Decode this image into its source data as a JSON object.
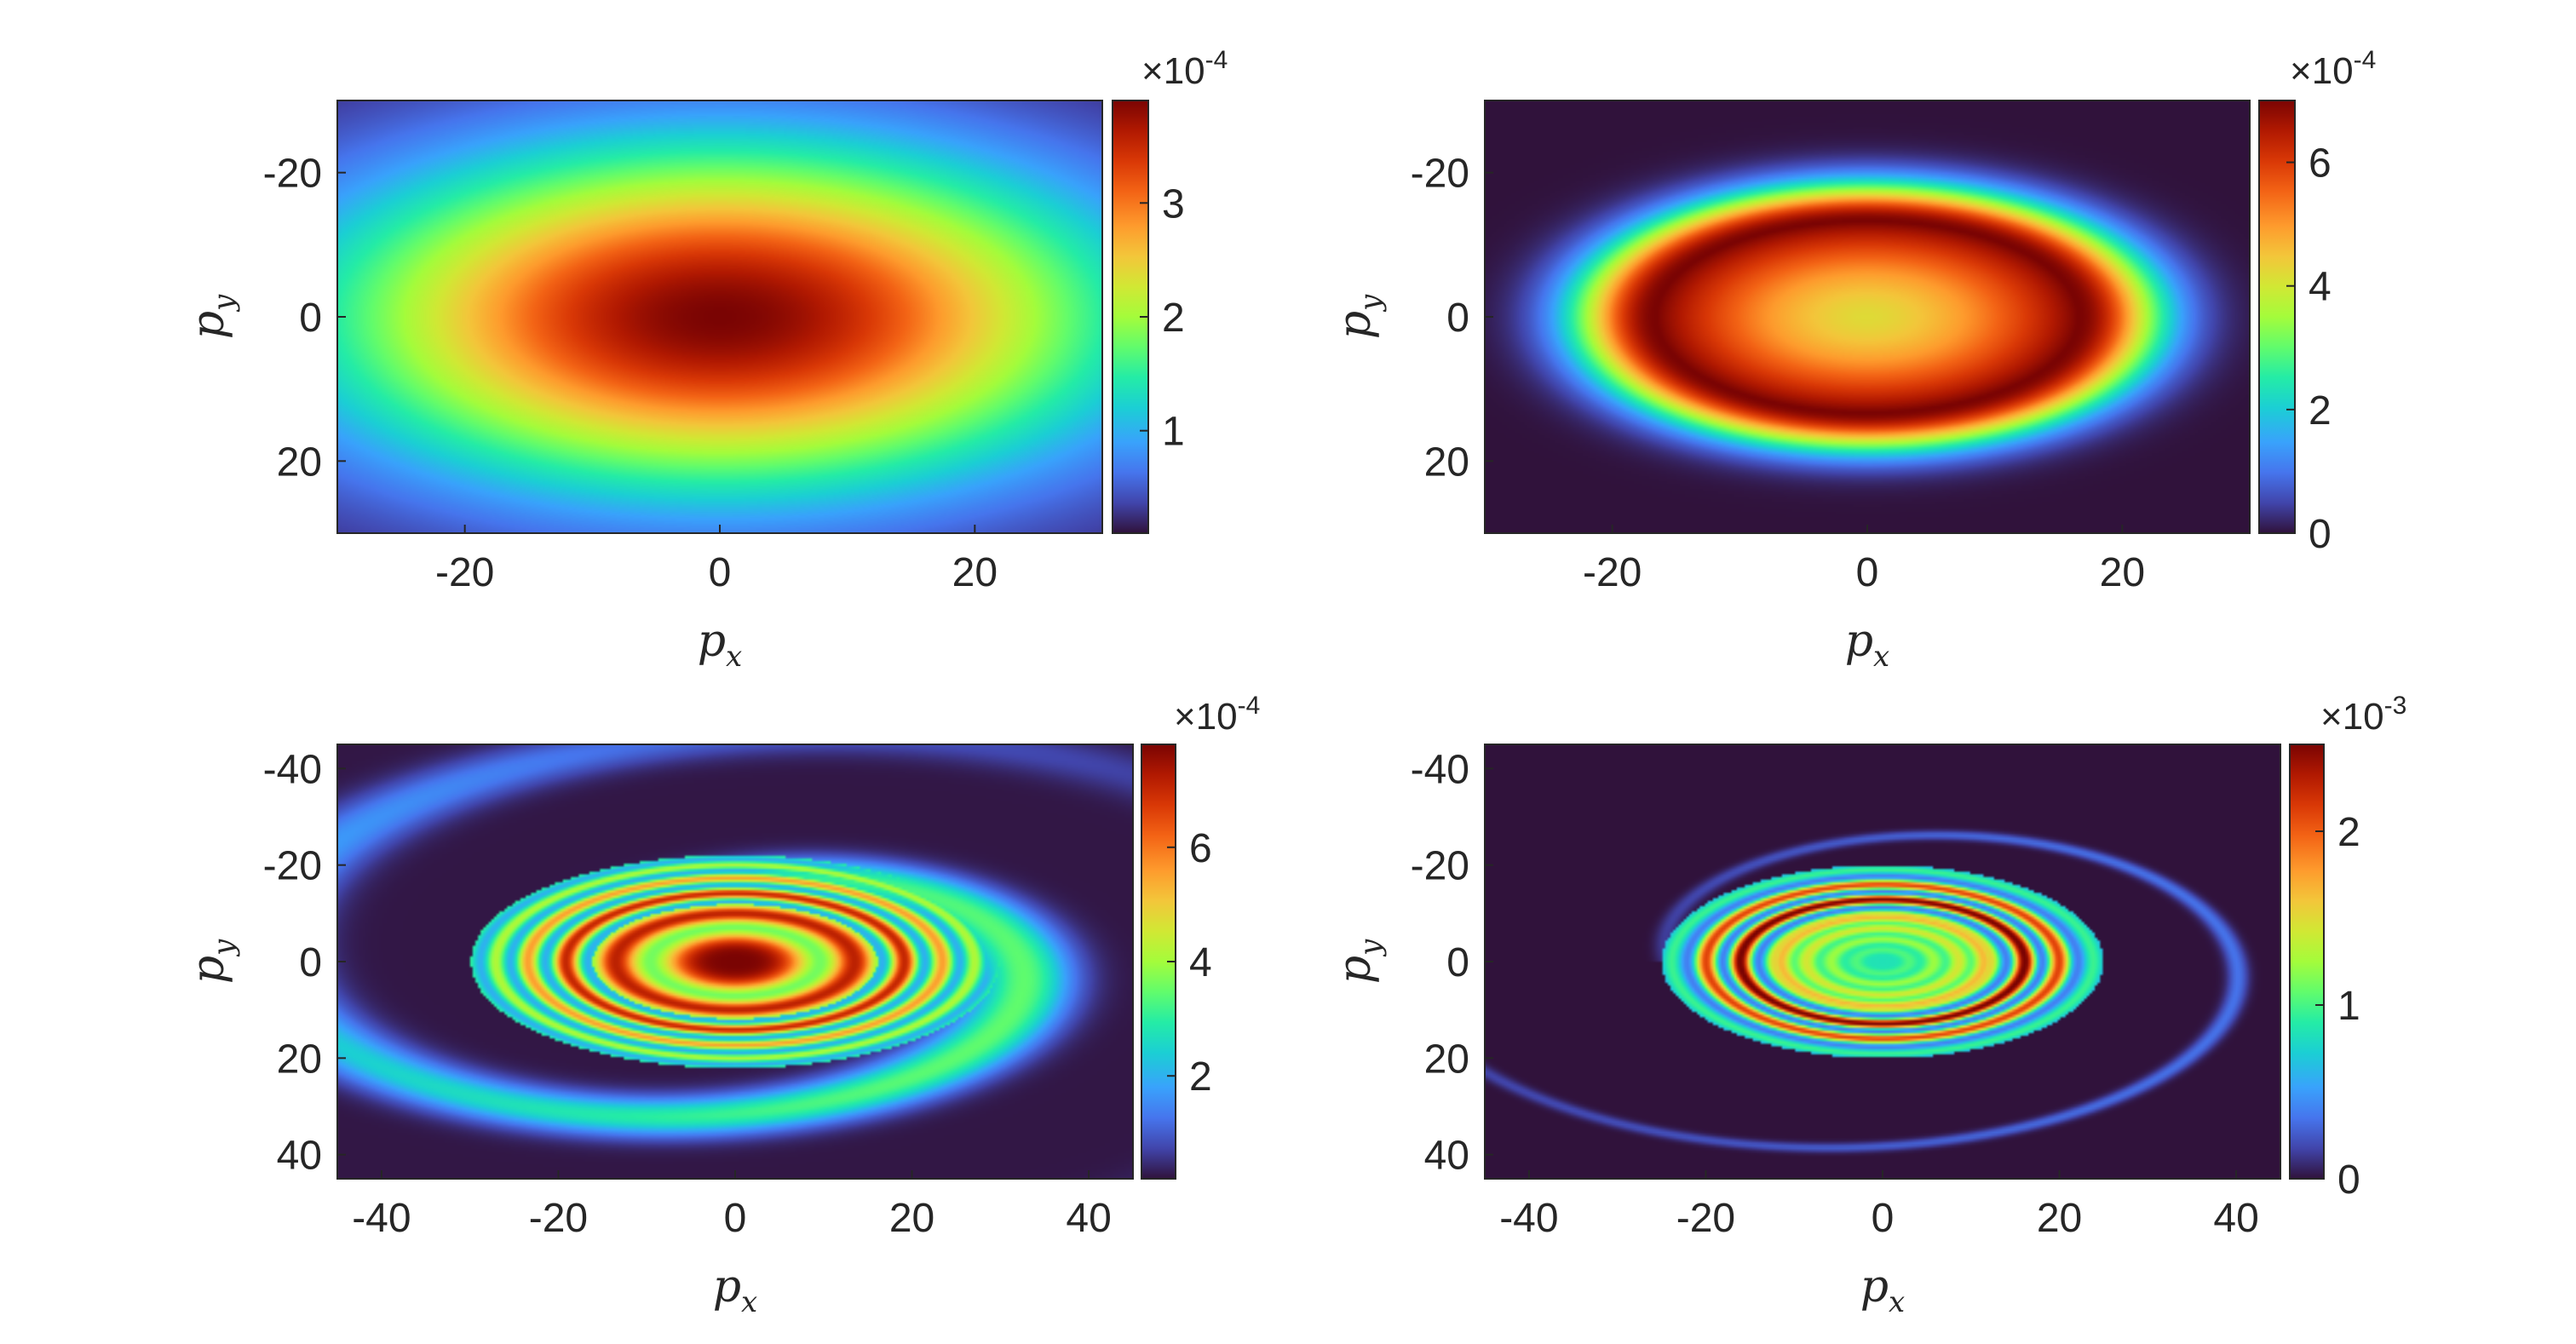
{
  "chart_data": [
    {
      "type": "heatmap",
      "panel": "top-left",
      "description_pattern": "broad gaussian",
      "xlabel": "p",
      "xlabel_sub": "x",
      "ylabel": "p",
      "ylabel_sub": "y",
      "xlim": [
        -30,
        30
      ],
      "ylim": [
        -30,
        30
      ],
      "y_reversed": true,
      "xticks": [
        -20,
        0,
        20
      ],
      "xtick_labels": [
        "-20",
        "0",
        "20"
      ],
      "yticks": [
        -20,
        0,
        20
      ],
      "ytick_labels": [
        "-20",
        "0",
        "20"
      ],
      "colorbar": {
        "min": 0.1,
        "max": 3.9,
        "ticks": [
          1,
          2,
          3
        ],
        "tick_labels": [
          "1",
          "2",
          "3"
        ],
        "multiplier_base": "×10",
        "multiplier_exp": "-4"
      },
      "pattern": {
        "kind": "gaussian",
        "sx": 21,
        "sy": 16,
        "peak": 3.9,
        "base": 0.1
      }
    },
    {
      "type": "heatmap",
      "panel": "top-right",
      "xlabel": "p",
      "xlabel_sub": "x",
      "ylabel": "p",
      "ylabel_sub": "y",
      "xlim": [
        -30,
        30
      ],
      "ylim": [
        -30,
        30
      ],
      "y_reversed": true,
      "xticks": [
        -20,
        0,
        20
      ],
      "xtick_labels": [
        "-20",
        "0",
        "20"
      ],
      "yticks": [
        -20,
        0,
        20
      ],
      "ytick_labels": [
        "-20",
        "0",
        "20"
      ],
      "colorbar": {
        "min": 0,
        "max": 7,
        "ticks": [
          0,
          2,
          4,
          6
        ],
        "tick_labels": [
          "0",
          "2",
          "4",
          "6"
        ],
        "multiplier_base": "×10",
        "multiplier_exp": "-4"
      },
      "pattern": {
        "kind": "annulus",
        "center_value": 4.2,
        "ring_value": 7,
        "ring_radius": 0.55,
        "edge": 0.9
      }
    },
    {
      "type": "heatmap",
      "panel": "bottom-left",
      "xlabel": "p",
      "xlabel_sub": "x",
      "ylabel": "p",
      "ylabel_sub": "y",
      "xlim": [
        -45,
        45
      ],
      "ylim": [
        -45,
        45
      ],
      "y_reversed": true,
      "xticks": [
        -40,
        -20,
        0,
        20,
        40
      ],
      "xtick_labels": [
        "-40",
        "-20",
        "0",
        "20",
        "40"
      ],
      "yticks": [
        -40,
        -20,
        0,
        20,
        40
      ],
      "ytick_labels": [
        "-40",
        "-20",
        "0",
        "20",
        "40"
      ],
      "colorbar": {
        "min": 0.2,
        "max": 7.8,
        "ticks": [
          2,
          4,
          6
        ],
        "tick_labels": [
          "2",
          "4",
          "6"
        ],
        "multiplier_base": "×10",
        "multiplier_exp": "-4"
      },
      "pattern": {
        "kind": "spiral",
        "peak": 7.8
      }
    },
    {
      "type": "heatmap",
      "panel": "bottom-right",
      "xlabel": "p",
      "xlabel_sub": "x",
      "ylabel": "p",
      "ylabel_sub": "y",
      "xlim": [
        -45,
        45
      ],
      "ylim": [
        -45,
        45
      ],
      "y_reversed": true,
      "xticks": [
        -40,
        -20,
        0,
        20,
        40
      ],
      "xtick_labels": [
        "-40",
        "-20",
        "0",
        "20",
        "40"
      ],
      "yticks": [
        -40,
        -20,
        0,
        20,
        40
      ],
      "ytick_labels": [
        "-40",
        "-20",
        "0",
        "20",
        "40"
      ],
      "colorbar": {
        "min": 0,
        "max": 2.5,
        "ticks": [
          0,
          1,
          2
        ],
        "tick_labels": [
          "0",
          "1",
          "2"
        ],
        "multiplier_base": "×10",
        "multiplier_exp": "-3"
      },
      "pattern": {
        "kind": "rings",
        "peak": 2.5
      }
    }
  ]
}
